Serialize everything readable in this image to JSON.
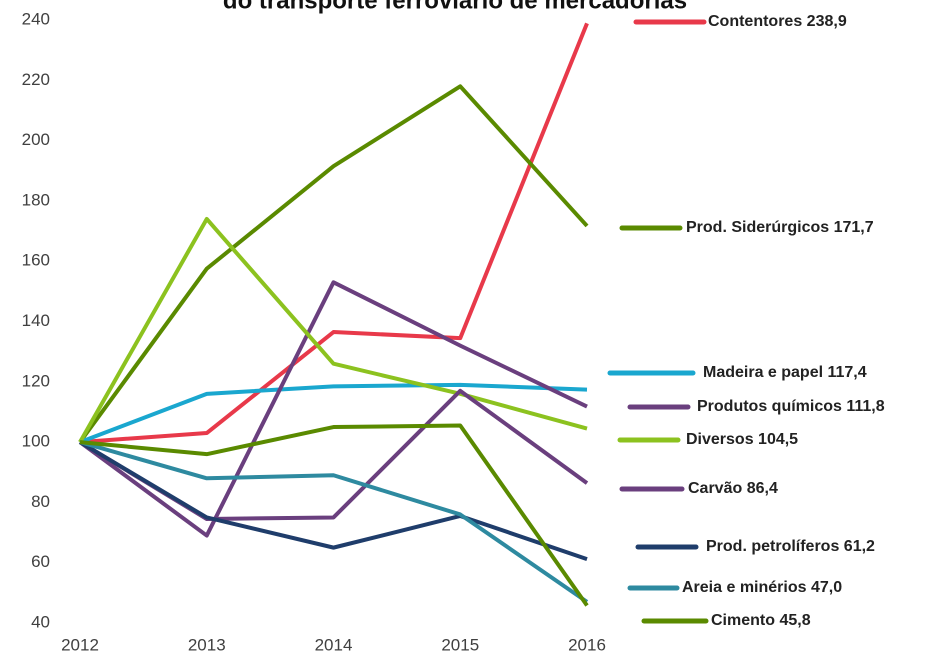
{
  "chart_data": {
    "type": "line",
    "title": "do transporte ferroviário de mercadorias",
    "x": [
      2012,
      2013,
      2014,
      2015,
      2016
    ],
    "xlim": [
      2012,
      2016
    ],
    "xticks": [
      2012,
      2013,
      2014,
      2015,
      2016
    ],
    "ylim": [
      40,
      240
    ],
    "yticks": [
      40,
      60,
      80,
      100,
      120,
      140,
      160,
      180,
      200,
      220,
      240
    ],
    "grid": false,
    "series": [
      {
        "name": "Contentores 238,9",
        "color": "#e8394a",
        "values": [
          100,
          103,
          136.5,
          134.5,
          238.9
        ]
      },
      {
        "name": "Prod. Siderúrgicos  171,7",
        "color": "#5a8a00",
        "values": [
          100,
          157.5,
          191.5,
          218,
          171.7
        ]
      },
      {
        "name": "Madeira e papel 117,4",
        "color": "#1aa7cf",
        "values": [
          100,
          116,
          118.5,
          119,
          117.4
        ]
      },
      {
        "name": "Produtos químicos 111,8",
        "color": "#6a3f7e",
        "values": [
          100,
          69,
          153,
          132,
          111.8
        ]
      },
      {
        "name": "Diversos 104,5",
        "color": "#8cc21f",
        "values": [
          100,
          174,
          126,
          116,
          104.5
        ]
      },
      {
        "name": "Carvão 86,4",
        "color": "#6a3f7e",
        "values": [
          100,
          74.5,
          75,
          117,
          86.4
        ]
      },
      {
        "name": "Prod. petrolíferos 61,2",
        "color": "#1f3d6b",
        "values": [
          100,
          75,
          65,
          75.5,
          61.2
        ]
      },
      {
        "name": "Areia e minérios 47,0",
        "color": "#2e8aa0",
        "values": [
          100,
          88,
          89,
          76,
          47.0
        ]
      },
      {
        "name": "Cimento 45,8",
        "color": "#5a8a00",
        "values": [
          100,
          96,
          105,
          105.5,
          45.8
        ]
      }
    ]
  }
}
